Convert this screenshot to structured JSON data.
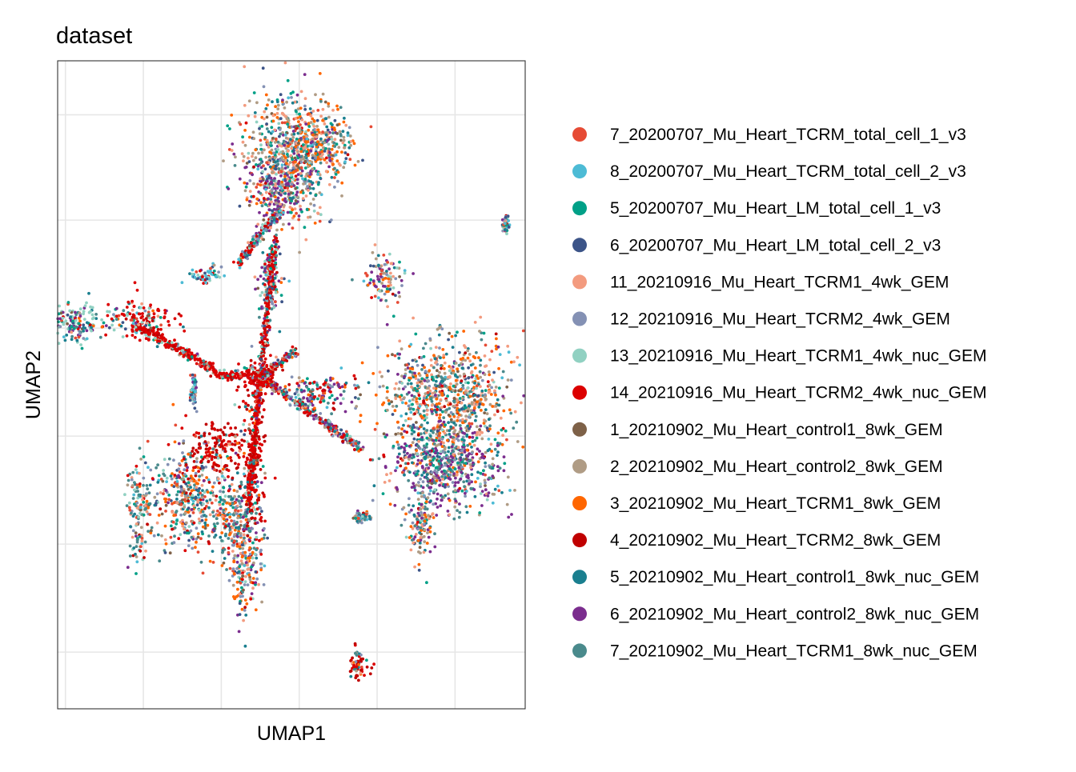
{
  "chart_data": {
    "type": "scatter",
    "title": "dataset",
    "xlabel": "UMAP1",
    "ylabel": "UMAP2",
    "xlim": [
      -12,
      12
    ],
    "ylim": [
      -12,
      12
    ],
    "grid": true,
    "axis_ticks_labeled": false,
    "legend_position": "right",
    "series": [
      {
        "name": "7_20200707_Mu_Heart_TCRM_total_cell_1_v3",
        "color": "#E64B35"
      },
      {
        "name": "8_20200707_Mu_Heart_TCRM_total_cell_2_v3",
        "color": "#4DBBD5"
      },
      {
        "name": "5_20200707_Mu_Heart_LM_total_cell_1_v3",
        "color": "#00A087"
      },
      {
        "name": "6_20200707_Mu_Heart_LM_total_cell_2_v3",
        "color": "#3C5488"
      },
      {
        "name": "11_20210916_Mu_Heart_TCRM1_4wk_GEM",
        "color": "#F39B7F"
      },
      {
        "name": "12_20210916_Mu_Heart_TCRM2_4wk_GEM",
        "color": "#8491B4"
      },
      {
        "name": "13_20210916_Mu_Heart_TCRM1_4wk_nuc_GEM",
        "color": "#91D1C2"
      },
      {
        "name": "14_20210916_Mu_Heart_TCRM2_4wk_nuc_GEM",
        "color": "#DC0000"
      },
      {
        "name": "1_20210902_Mu_Heart_control1_8wk_GEM",
        "color": "#7E6148"
      },
      {
        "name": "2_20210902_Mu_Heart_control2_8wk_GEM",
        "color": "#B09C85"
      },
      {
        "name": "3_20210902_Mu_Heart_TCRM1_8wk_GEM",
        "color": "#FF6600"
      },
      {
        "name": "4_20210902_Mu_Heart_TCRM2_8wk_GEM",
        "color": "#C00000"
      },
      {
        "name": "5_20210902_Mu_Heart_control1_8wk_nuc_GEM",
        "color": "#1A7F8F"
      },
      {
        "name": "6_20210902_Mu_Heart_control2_8wk_nuc_GEM",
        "color": "#7B2D8E"
      },
      {
        "name": "7_20210902_Mu_Heart_TCRM1_8wk_nuc_GEM",
        "color": "#4A8A8C"
      }
    ],
    "clusters": [
      {
        "cx": -0.3,
        "cy": 8.3,
        "sx": 1.5,
        "sy": 1.6,
        "weights": [
          0.06,
          0.03,
          0.08,
          0.05,
          0.16,
          0.05,
          0.04,
          0.01,
          0.03,
          0.15,
          0.13,
          0.01,
          0.09,
          0.08,
          0.03
        ]
      },
      {
        "cx": -0.6,
        "cy": 7.2,
        "sx": 0.9,
        "sy": 0.7,
        "weights": [
          0.03,
          0.03,
          0.05,
          0.04,
          0.08,
          0.06,
          0.04,
          0.01,
          0.03,
          0.08,
          0.06,
          0.01,
          0.06,
          0.35,
          0.07
        ]
      },
      {
        "cx": 1.5,
        "cy": 8.9,
        "sx": 1.2,
        "sy": 0.9,
        "weights": [
          0.05,
          0.02,
          0.05,
          0.04,
          0.18,
          0.05,
          0.04,
          0.01,
          0.04,
          0.12,
          0.22,
          0.01,
          0.08,
          0.04,
          0.05
        ]
      },
      {
        "cx": 4.7,
        "cy": 4.0,
        "sx": 0.7,
        "sy": 0.6,
        "weights": [
          0.04,
          0.03,
          0.06,
          0.05,
          0.12,
          0.09,
          0.1,
          0.01,
          0.02,
          0.06,
          0.12,
          0.01,
          0.08,
          0.15,
          0.06
        ]
      },
      {
        "cx": -11.0,
        "cy": 2.3,
        "sx": 1.2,
        "sy": 0.5,
        "weights": [
          0.04,
          0.03,
          0.07,
          0.03,
          0.03,
          0.04,
          0.28,
          0.03,
          0.02,
          0.03,
          0.02,
          0.02,
          0.1,
          0.2,
          0.06
        ]
      },
      {
        "cx": -7.8,
        "cy": 2.4,
        "sx": 1.1,
        "sy": 0.5,
        "weights": [
          0.03,
          0.02,
          0.04,
          0.03,
          0.04,
          0.03,
          0.07,
          0.45,
          0.02,
          0.02,
          0.03,
          0.14,
          0.03,
          0.02,
          0.03
        ]
      },
      {
        "cx": 8.0,
        "cy": -0.5,
        "sx": 2.2,
        "sy": 1.5,
        "weights": [
          0.04,
          0.02,
          0.07,
          0.04,
          0.13,
          0.04,
          0.03,
          0.01,
          0.04,
          0.15,
          0.16,
          0.02,
          0.12,
          0.05,
          0.08
        ]
      },
      {
        "cx": 8.0,
        "cy": -3.1,
        "sx": 2.0,
        "sy": 1.1,
        "weights": [
          0.03,
          0.02,
          0.05,
          0.03,
          0.06,
          0.07,
          0.03,
          0.01,
          0.03,
          0.09,
          0.04,
          0.01,
          0.08,
          0.3,
          0.15
        ]
      },
      {
        "cx": 6.7,
        "cy": -5.2,
        "sx": 0.5,
        "sy": 0.9,
        "weights": [
          0.03,
          0.02,
          0.05,
          0.03,
          0.15,
          0.05,
          0.02,
          0.01,
          0.03,
          0.18,
          0.12,
          0.01,
          0.08,
          0.1,
          0.12
        ]
      },
      {
        "cx": -3.8,
        "cy": -2.4,
        "sx": 1.0,
        "sy": 0.7,
        "weights": [
          0.02,
          0.01,
          0.02,
          0.02,
          0.03,
          0.02,
          0.02,
          0.28,
          0.01,
          0.01,
          0.03,
          0.4,
          0.03,
          0.01,
          0.03
        ]
      },
      {
        "cx": -5.5,
        "cy": -4.2,
        "sx": 1.2,
        "sy": 1.2,
        "weights": [
          0.09,
          0.03,
          0.07,
          0.06,
          0.12,
          0.1,
          0.05,
          0.03,
          0.03,
          0.06,
          0.13,
          0.03,
          0.06,
          0.04,
          0.1
        ]
      },
      {
        "cx": -3.1,
        "cy": -5.0,
        "sx": 0.9,
        "sy": 0.9,
        "weights": [
          0.04,
          0.02,
          0.06,
          0.05,
          0.08,
          0.06,
          0.04,
          0.02,
          0.02,
          0.06,
          0.12,
          0.02,
          0.12,
          0.05,
          0.3
        ]
      },
      {
        "cx": -2.4,
        "cy": -6.7,
        "sx": 0.6,
        "sy": 1.3,
        "weights": [
          0.05,
          0.03,
          0.05,
          0.04,
          0.08,
          0.12,
          0.05,
          0.02,
          0.03,
          0.07,
          0.17,
          0.03,
          0.08,
          0.12,
          0.07
        ]
      },
      {
        "cx": -7.8,
        "cy": -4.6,
        "sx": 0.4,
        "sy": 1.3,
        "weights": [
          0.06,
          0.03,
          0.06,
          0.04,
          0.12,
          0.09,
          0.06,
          0.02,
          0.03,
          0.06,
          0.06,
          0.03,
          0.08,
          0.05,
          0.22
        ]
      },
      {
        "cx": -2.0,
        "cy": -2.6,
        "sx": 0.4,
        "sy": 2.0,
        "weights": [
          0.02,
          0.01,
          0.02,
          0.02,
          0.02,
          0.02,
          0.02,
          0.42,
          0.01,
          0.01,
          0.02,
          0.35,
          0.02,
          0.02,
          0.02
        ]
      },
      {
        "cx": -1.6,
        "cy": 0.3,
        "sx": 0.7,
        "sy": 0.5,
        "weights": [
          0.02,
          0.01,
          0.03,
          0.02,
          0.02,
          0.02,
          0.03,
          0.55,
          0.01,
          0.01,
          0.01,
          0.2,
          0.03,
          0.02,
          0.02
        ]
      },
      {
        "cx": -1.2,
        "cy": 3.8,
        "sx": 0.45,
        "sy": 1.0,
        "weights": [
          0.05,
          0.03,
          0.06,
          0.05,
          0.04,
          0.08,
          0.18,
          0.08,
          0.02,
          0.03,
          0.02,
          0.04,
          0.06,
          0.2,
          0.06
        ]
      },
      {
        "cx": 1.6,
        "cy": -0.3,
        "sx": 1.2,
        "sy": 0.45,
        "weights": [
          0.05,
          0.03,
          0.06,
          0.05,
          0.06,
          0.08,
          0.07,
          0.12,
          0.02,
          0.04,
          0.04,
          0.06,
          0.06,
          0.18,
          0.08
        ]
      },
      {
        "cx": -4.3,
        "cy": 4.1,
        "sx": 0.5,
        "sy": 0.2,
        "weights": [
          0.02,
          0.45,
          0.05,
          0.08,
          0.02,
          0.1,
          0.1,
          0.03,
          0.01,
          0.02,
          0.01,
          0.02,
          0.04,
          0.03,
          0.02
        ]
      },
      {
        "cx": -5.0,
        "cy": -0.2,
        "sx": 0.12,
        "sy": 0.35,
        "weights": [
          0.05,
          0.1,
          0.1,
          0.15,
          0.03,
          0.2,
          0.1,
          0.03,
          0.02,
          0.03,
          0.02,
          0.02,
          0.05,
          0.05,
          0.05
        ]
      },
      {
        "cx": 11.0,
        "cy": 5.9,
        "sx": 0.12,
        "sy": 0.22,
        "weights": [
          0.05,
          0.2,
          0.1,
          0.15,
          0.03,
          0.2,
          0.1,
          0.02,
          0.02,
          0.03,
          0.02,
          0.02,
          0.03,
          0.02,
          0.01
        ]
      },
      {
        "cx": 3.4,
        "cy": -10.4,
        "sx": 0.35,
        "sy": 0.35,
        "weights": [
          0.02,
          0.01,
          0.03,
          0.02,
          0.02,
          0.01,
          0.02,
          0.22,
          0.01,
          0.01,
          0.02,
          0.55,
          0.03,
          0.01,
          0.02
        ]
      },
      {
        "cx": 3.6,
        "cy": -4.9,
        "sx": 0.25,
        "sy": 0.12,
        "weights": [
          0.05,
          0.05,
          0.1,
          0.1,
          0.05,
          0.15,
          0.05,
          0.03,
          0.02,
          0.05,
          0.05,
          0.02,
          0.1,
          0.1,
          0.08
        ]
      }
    ],
    "strands": [
      {
        "x1": -4.0,
        "y1": 0.4,
        "x2": -1.6,
        "y2": 0.3,
        "weights": [
          0.01,
          0.01,
          0.02,
          0.02,
          0.02,
          0.02,
          0.05,
          0.6,
          0.01,
          0.01,
          0.01,
          0.2,
          0.02,
          0.01,
          0.01
        ]
      },
      {
        "x1": -8.0,
        "y1": 2.2,
        "x2": -4.0,
        "y2": 0.6,
        "weights": [
          0.02,
          0.01,
          0.02,
          0.02,
          0.02,
          0.02,
          0.05,
          0.55,
          0.01,
          0.01,
          0.01,
          0.2,
          0.02,
          0.02,
          0.02
        ]
      },
      {
        "x1": -1.6,
        "y1": 0.3,
        "x2": -0.8,
        "y2": 5.5,
        "weights": [
          0.03,
          0.02,
          0.03,
          0.03,
          0.02,
          0.05,
          0.08,
          0.45,
          0.01,
          0.01,
          0.01,
          0.15,
          0.04,
          0.04,
          0.03
        ]
      },
      {
        "x1": -1.6,
        "y1": 0.3,
        "x2": -2.2,
        "y2": -4.5,
        "weights": [
          0.02,
          0.01,
          0.02,
          0.02,
          0.02,
          0.02,
          0.03,
          0.5,
          0.01,
          0.01,
          0.02,
          0.25,
          0.03,
          0.02,
          0.03
        ]
      },
      {
        "x1": -1.6,
        "y1": 0.3,
        "x2": 3.6,
        "y2": -2.4,
        "weights": [
          0.04,
          0.02,
          0.05,
          0.05,
          0.05,
          0.08,
          0.05,
          0.15,
          0.02,
          0.04,
          0.05,
          0.06,
          0.08,
          0.18,
          0.08
        ]
      },
      {
        "x1": -0.6,
        "y1": 6.5,
        "x2": -2.8,
        "y2": 4.4,
        "weights": [
          0.04,
          0.1,
          0.06,
          0.06,
          0.03,
          0.1,
          0.08,
          0.2,
          0.02,
          0.02,
          0.02,
          0.06,
          0.06,
          0.1,
          0.05
        ]
      },
      {
        "x1": -1.6,
        "y1": 0.3,
        "x2": 0.4,
        "y2": 1.3,
        "weights": [
          0.05,
          0.03,
          0.06,
          0.05,
          0.05,
          0.08,
          0.08,
          0.2,
          0.02,
          0.03,
          0.03,
          0.06,
          0.08,
          0.12,
          0.06
        ]
      }
    ]
  }
}
